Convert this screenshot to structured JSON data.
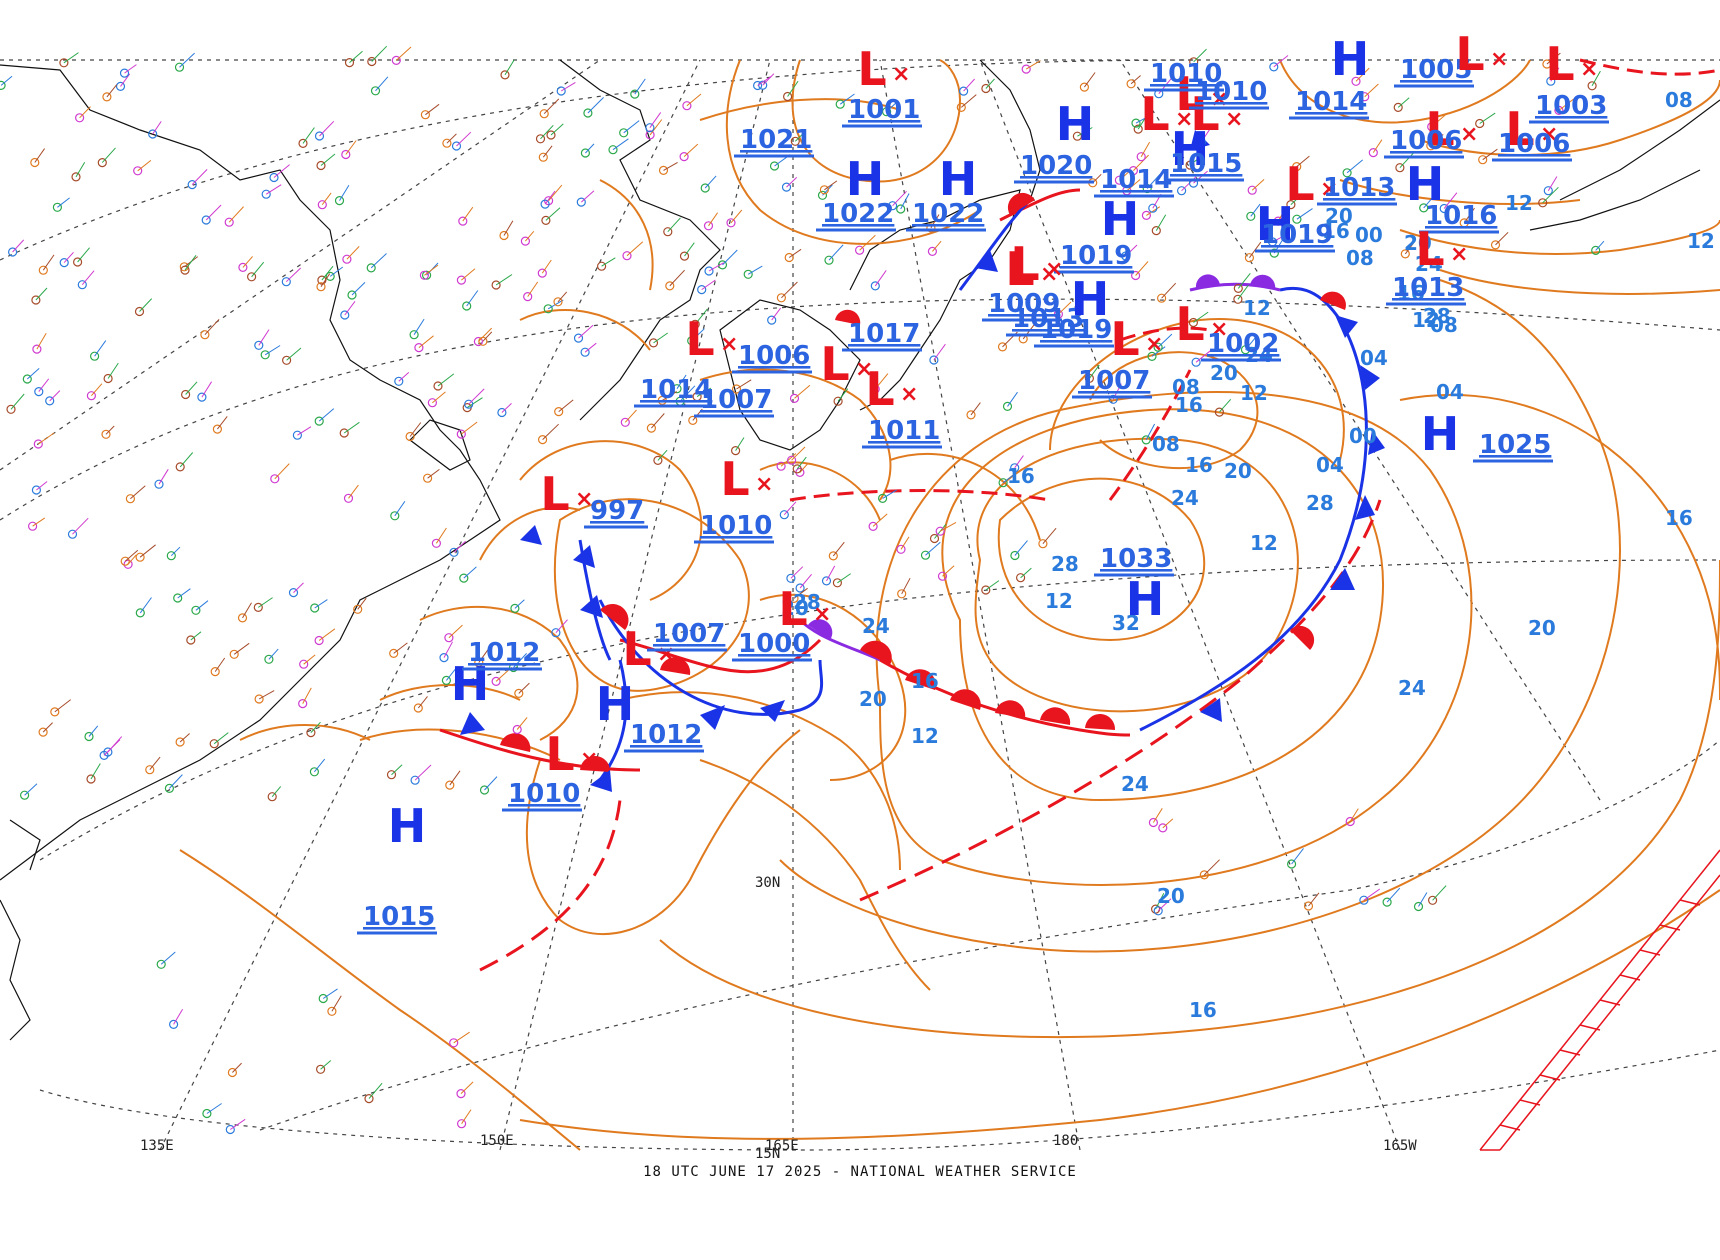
{
  "credit": "18 UTC JUNE 17 2025 - NATIONAL WEATHER SERVICE",
  "colors": {
    "isobar": "#e07a1f",
    "isobar_label": "#2b7bdc",
    "high": "#1a33e6",
    "low": "#e8141e",
    "cold_front": "#1a33e6",
    "warm_front": "#e8141e",
    "occluded_front": "#8a2be2",
    "trough": "#e8141e",
    "grid": "#444444",
    "coast": "#111111"
  },
  "lon_labels": [
    "135E",
    "150E",
    "165E",
    "180",
    "165W"
  ],
  "lat_labels": [
    "30N",
    "15N"
  ],
  "pressure_centers": [
    {
      "type": "H",
      "value": "1021"
    },
    {
      "type": "L",
      "value": "1001"
    },
    {
      "type": "H",
      "value": "1020"
    },
    {
      "type": "L",
      "value": "1010"
    },
    {
      "type": "H",
      "value": "1005"
    },
    {
      "type": "L",
      "value": "1003"
    },
    {
      "type": "H",
      "value": "1022"
    },
    {
      "type": "H",
      "value": "1022"
    },
    {
      "type": "L",
      "value": "1010"
    },
    {
      "type": "L",
      "value": "1014"
    },
    {
      "type": "H",
      "value": "1015"
    },
    {
      "type": "L",
      "value": "1006"
    },
    {
      "type": "L",
      "value": "1006"
    },
    {
      "type": "L",
      "value": "1013"
    },
    {
      "type": "H",
      "value": "1016"
    },
    {
      "type": "L",
      "value": "1014"
    },
    {
      "type": "L",
      "value": "1013"
    },
    {
      "type": "H",
      "value": "1019"
    },
    {
      "type": "H",
      "value": "1019"
    },
    {
      "type": "L",
      "value": "1013"
    },
    {
      "type": "L",
      "value": "1009"
    },
    {
      "type": "H",
      "value": "1019"
    },
    {
      "type": "L",
      "value": "1017"
    },
    {
      "type": "L",
      "value": "1006"
    },
    {
      "type": "L",
      "value": "1007"
    },
    {
      "type": "L",
      "value": "1002"
    },
    {
      "type": "L",
      "value": "1007"
    },
    {
      "type": "L",
      "value": "1014"
    },
    {
      "type": "L",
      "value": "1011"
    },
    {
      "type": "H",
      "value": "1025"
    },
    {
      "type": "L",
      "value": "997"
    },
    {
      "type": "L",
      "value": "1010"
    },
    {
      "type": "H",
      "value": "1033"
    },
    {
      "type": "L",
      "value": "1007"
    },
    {
      "type": "L",
      "value": "1000"
    },
    {
      "type": "H",
      "value": "1012"
    },
    {
      "type": "H",
      "value": "1012"
    },
    {
      "type": "L",
      "value": "1010"
    },
    {
      "type": "H",
      "value": "1015"
    }
  ],
  "isobar_labels": [
    "08",
    "12",
    "16",
    "20",
    "24",
    "28",
    "16",
    "20",
    "24",
    "28",
    "32",
    "24",
    "20",
    "16",
    "12",
    "08",
    "04",
    "00",
    "04",
    "08",
    "12",
    "16",
    "20",
    "24",
    "28",
    "20",
    "16",
    "12",
    "08",
    "04",
    "00",
    "12",
    "16",
    "20",
    "24",
    "12",
    "08",
    "16",
    "20",
    "24",
    "28",
    "12",
    "16",
    "20",
    "12"
  ]
}
